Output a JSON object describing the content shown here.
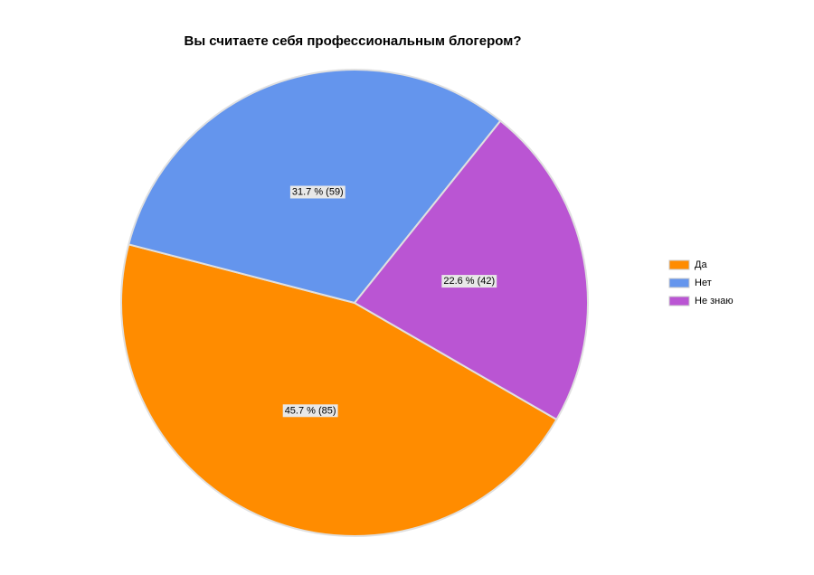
{
  "chart_data": {
    "type": "pie",
    "title": "Вы считаете себя профессиональным блогером?",
    "categories": [
      "Да",
      "Нет",
      "Не знаю"
    ],
    "values": [
      85,
      59,
      42
    ],
    "value_labels": [
      "45.7 % (85)",
      "31.7 % (59)",
      "22.6 % (42)"
    ],
    "colors": [
      "#ff8c00",
      "#6495ed",
      "#ba55d3"
    ],
    "legend": "right"
  }
}
